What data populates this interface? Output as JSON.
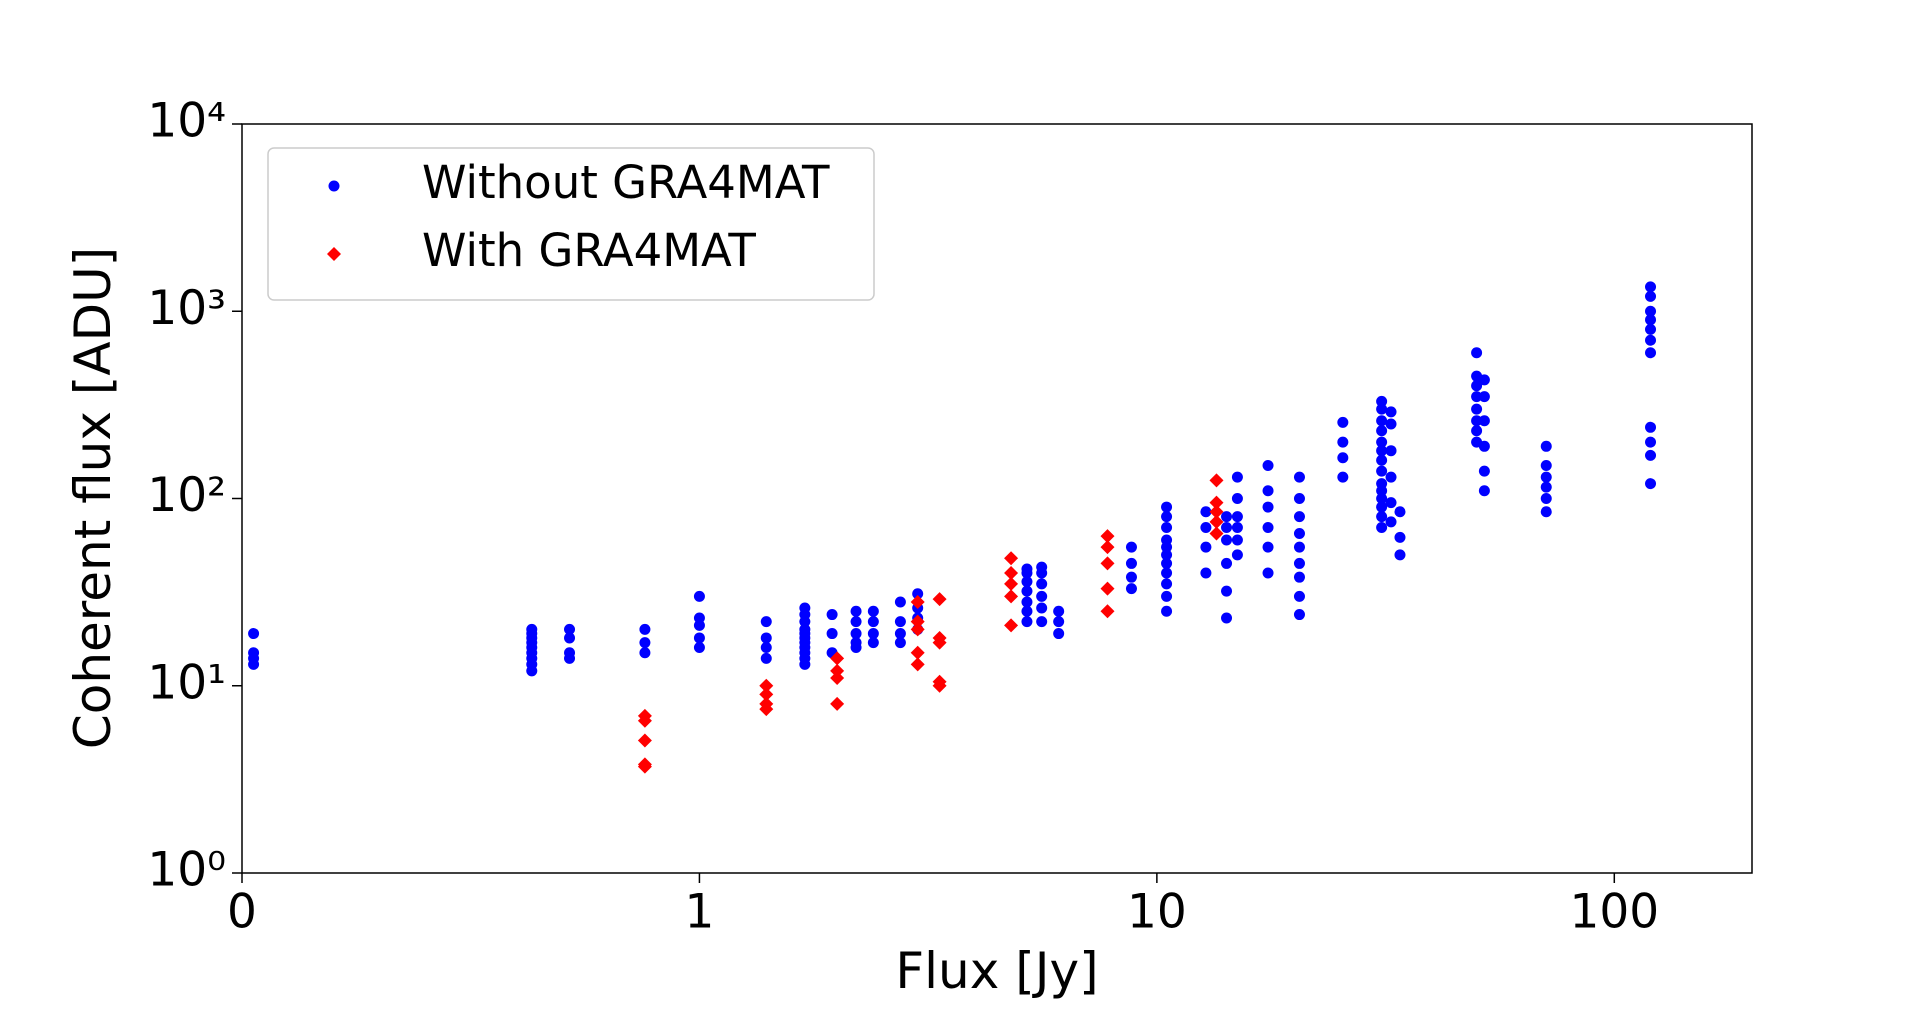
{
  "chart_data": {
    "type": "scatter",
    "x_label": "Flux [Jy]",
    "y_label": "Coherent flux [ADU]",
    "xscale": "log",
    "yscale": "log",
    "xlim": [
      0.1,
      200
    ],
    "ylim": [
      1,
      10000
    ],
    "xticks": [
      {
        "value": 0.1,
        "label": "0"
      },
      1,
      10,
      100
    ],
    "yticks": [
      {
        "value": 1,
        "label": "10⁰"
      },
      {
        "value": 10,
        "label": "10¹"
      },
      {
        "value": 100,
        "label": "10²"
      },
      {
        "value": 1000,
        "label": "10³"
      },
      {
        "value": 10000,
        "label": "10⁴"
      }
    ],
    "legend": "upper left",
    "series": [
      {
        "name": "Without GRA4MAT",
        "color": "#0000ff",
        "marker": "circle",
        "x": [
          0.106,
          0.106,
          0.106,
          0.106,
          0.43,
          0.43,
          0.43,
          0.43,
          0.43,
          0.43,
          0.43,
          0.43,
          0.43,
          0.52,
          0.52,
          0.52,
          0.52,
          0.76,
          0.76,
          0.76,
          1.0,
          1.0,
          1.0,
          1.0,
          1.0,
          1.4,
          1.4,
          1.4,
          1.4,
          1.7,
          1.7,
          1.7,
          1.7,
          1.7,
          1.7,
          1.7,
          1.7,
          1.7,
          1.7,
          1.7,
          1.95,
          1.95,
          1.95,
          2.2,
          2.2,
          2.2,
          2.2,
          2.2,
          2.4,
          2.4,
          2.4,
          2.4,
          2.75,
          2.75,
          2.75,
          2.75,
          3.0,
          3.0,
          3.0,
          3.0,
          5.2,
          5.2,
          5.2,
          5.2,
          5.2,
          5.2,
          5.2,
          5.6,
          5.6,
          5.6,
          5.6,
          5.6,
          5.6,
          6.1,
          6.1,
          6.1,
          8.8,
          8.8,
          8.8,
          8.8,
          10.5,
          10.5,
          10.5,
          10.5,
          10.5,
          10.5,
          10.5,
          10.5,
          10.5,
          10.5,
          10.5,
          12.8,
          12.8,
          12.8,
          12.8,
          14.2,
          14.2,
          14.2,
          14.2,
          14.2,
          14.2,
          15,
          15,
          15,
          15,
          15,
          15,
          17.5,
          17.5,
          17.5,
          17.5,
          17.5,
          17.5,
          20.5,
          20.5,
          20.5,
          20.5,
          20.5,
          20.5,
          20.5,
          20.5,
          20.5,
          25.5,
          25.5,
          25.5,
          25.5,
          31,
          31,
          31,
          31,
          31,
          31,
          31,
          31,
          31,
          31,
          31,
          31,
          31,
          31,
          32.5,
          32.5,
          32.5,
          32.5,
          32.5,
          32.5,
          34,
          34,
          34,
          50,
          50,
          50,
          50,
          50,
          50,
          50,
          50,
          52,
          52,
          52,
          52,
          52,
          52,
          71,
          71,
          71,
          71,
          71,
          71,
          120,
          120,
          120,
          120,
          120,
          120,
          120,
          120,
          120,
          120,
          120
        ],
        "values": [
          13,
          14,
          15,
          19,
          12,
          13,
          14,
          15,
          16,
          17,
          18,
          19,
          20,
          14,
          15,
          18,
          20,
          15,
          17,
          20,
          16,
          18,
          21,
          23,
          30,
          14,
          16,
          18,
          22,
          13,
          14,
          15,
          16,
          17,
          18,
          19,
          20,
          22,
          24,
          26,
          15,
          19,
          24,
          16,
          17,
          19,
          22,
          25,
          17,
          19,
          22,
          25,
          17,
          19,
          22,
          28,
          20,
          23,
          26,
          31,
          22,
          25,
          28,
          32,
          36,
          40,
          42,
          22,
          26,
          30,
          35,
          40,
          43,
          19,
          22,
          25,
          33,
          38,
          45,
          55,
          25,
          30,
          35,
          40,
          45,
          50,
          55,
          60,
          70,
          80,
          90,
          40,
          55,
          70,
          85,
          23,
          32,
          45,
          60,
          70,
          80,
          50,
          60,
          70,
          80,
          100,
          130,
          40,
          55,
          70,
          90,
          110,
          150,
          24,
          30,
          38,
          45,
          55,
          65,
          80,
          100,
          130,
          130,
          165,
          200,
          255,
          70,
          80,
          90,
          100,
          110,
          120,
          140,
          160,
          180,
          200,
          230,
          260,
          300,
          330,
          75,
          95,
          130,
          180,
          250,
          290,
          50,
          62,
          85,
          200,
          230,
          260,
          300,
          350,
          400,
          450,
          600,
          110,
          140,
          190,
          260,
          350,
          430,
          85,
          100,
          115,
          130,
          150,
          190,
          120,
          170,
          200,
          240,
          600,
          700,
          800,
          900,
          1000,
          1200,
          1350
        ]
      },
      {
        "name": "With GRA4MAT",
        "color": "#ff0000",
        "marker": "diamond",
        "x": [
          0.76,
          0.76,
          0.76,
          0.76,
          0.76,
          1.4,
          1.4,
          1.4,
          1.4,
          2.0,
          2.0,
          2.0,
          2.0,
          3.0,
          3.0,
          3.0,
          3.0,
          3.0,
          3.35,
          3.35,
          3.35,
          3.35,
          3.35,
          4.8,
          4.8,
          4.8,
          4.8,
          4.8,
          7.8,
          7.8,
          7.8,
          7.8,
          7.8,
          13.5,
          13.5,
          13.5,
          13.5,
          13.5
        ],
        "values": [
          3.7,
          3.8,
          5.1,
          6.5,
          6.9,
          7.5,
          8,
          9,
          10,
          8,
          11,
          12,
          14,
          13,
          15,
          20,
          22,
          28,
          10,
          10.5,
          17,
          18,
          29,
          21,
          30,
          35,
          40,
          48,
          25,
          33,
          45,
          55,
          63,
          65,
          75,
          85,
          95,
          125
        ]
      }
    ]
  }
}
